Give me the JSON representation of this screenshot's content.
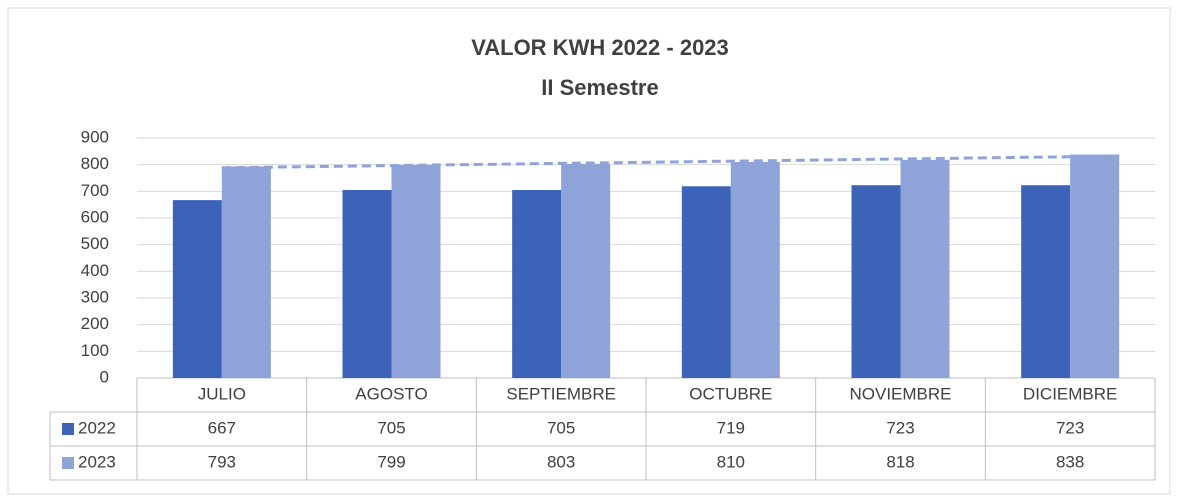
{
  "chart_data": {
    "type": "bar",
    "title": "VALOR KWH 2022 - 2023",
    "subtitle": "II Semestre",
    "categories": [
      "JULIO",
      "AGOSTO",
      "SEPTIEMBRE",
      "OCTUBRE",
      "NOVIEMBRE",
      "DICIEMBRE"
    ],
    "series": [
      {
        "name": "2022",
        "color": "#3d63b8",
        "values": [
          667,
          705,
          705,
          719,
          723,
          723
        ]
      },
      {
        "name": "2023",
        "color": "#8ea4d8",
        "values": [
          793,
          799,
          803,
          810,
          818,
          838
        ]
      }
    ],
    "ylim": [
      0,
      900
    ],
    "yticks": [
      0,
      100,
      200,
      300,
      400,
      500,
      600,
      700,
      800,
      900
    ],
    "grid": true,
    "trendline_series": 1,
    "legend": "data-table"
  }
}
